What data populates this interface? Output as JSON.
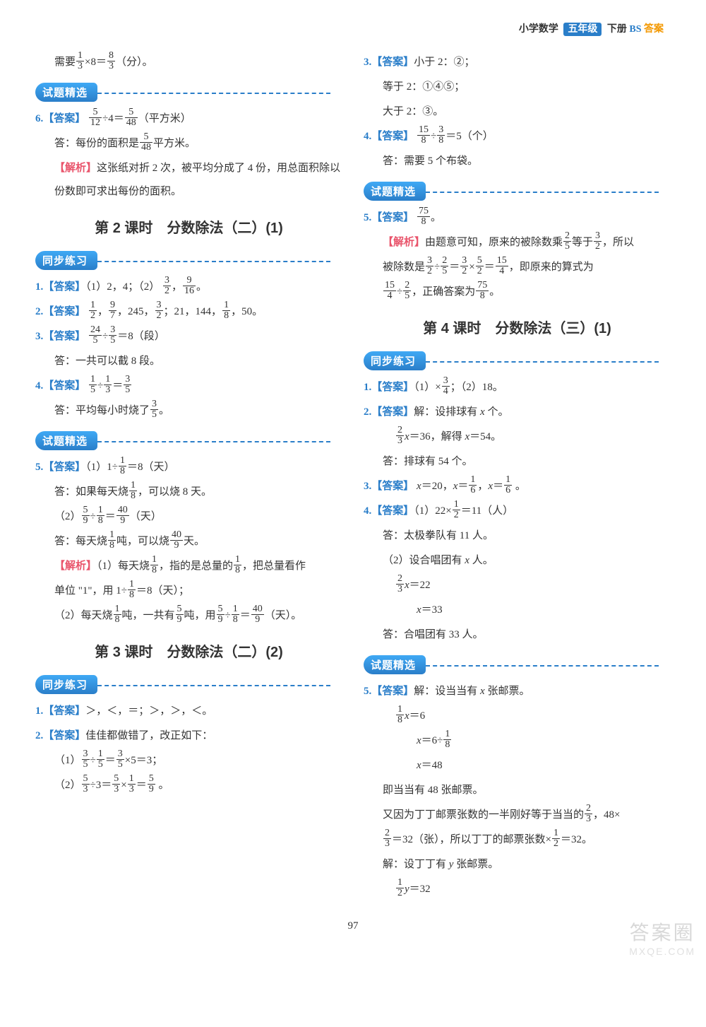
{
  "header": {
    "subject": "小学数学",
    "grade": "五年级",
    "vol": "下册",
    "book": "BS",
    "ans": "答案"
  },
  "labels": {
    "answer": "【答案】",
    "explain": "【解析】",
    "sel": "试题精选",
    "sync": "同步练习"
  },
  "sections": {
    "s2": "第 2 课时　分数除法（二）(1)",
    "s3": "第 3 课时　分数除法（二）(2)",
    "s4": "第 4 课时　分数除法（三）(1)"
  },
  "left": {
    "top1a": "需要",
    "top1b": "×8＝",
    "top1c": "（分）。",
    "q6a": "÷4＝",
    "q6b": "（平方米）",
    "q6ans": "答：每份的面积是",
    "q6ans2": "平方米。",
    "q6exp": "这张纸对折 2 次，被平均分成了 4 份，用总面积除以份数即可求出每份的面积。",
    "s2q1": "（1）2，4；（2）",
    "s2q2a": "，245，",
    "s2q2b": "；21，144，",
    "s2q2c": "，50。",
    "s2q3a": "÷",
    "s2q3b": "＝8（段）",
    "s2q3ans": "答：一共可以截 8 段。",
    "s2q4a": "÷",
    "s2q4b": "＝",
    "s2q4ans": "答：平均每小时烧了",
    "s2q5_1a": "（1）1÷",
    "s2q5_1b": "＝8（天）",
    "s2q5_1ans1": "答：如果每天烧",
    "s2q5_1ans2": "，可以烧 8 天。",
    "s2q5_2a": "（2）",
    "s2q5_2b": "÷",
    "s2q5_2c": "＝",
    "s2q5_2d": "（天）",
    "s2q5_2ans1": "答：每天烧",
    "s2q5_2ans2": "吨，可以烧",
    "s2q5_2ans3": "天。",
    "s2q5exp1a": "（1）每天烧",
    "s2q5exp1b": "，指的是总量的",
    "s2q5exp1c": "，把总量看作",
    "s2q5exp1d": "单位 \"1\"，用 1÷",
    "s2q5exp1e": "＝8（天）；",
    "s2q5exp2a": "（2）每天烧",
    "s2q5exp2b": "吨，一共有",
    "s2q5exp2c": "吨，用",
    "s2q5exp2d": "（天）。",
    "s3q1": "＞，＜，＝；＞，＞，＜。",
    "s3q2": "佳佳都做错了，改正如下：",
    "s3q2_1a": "（1）",
    "s3q2_1b": "×5＝3；",
    "s3q2_2a": "（2）",
    "s3q2_2b": "÷3＝"
  },
  "right": {
    "q3a": "小于 2：②；",
    "q3b": "等于 2：①④⑤；",
    "q3c": "大于 2：③。",
    "q4b": "＝5（个）",
    "q4ans": "答：需要 5 个布袋。",
    "q5exp1": "由题意可知，原来的被除数乘",
    "q5exp2": "等于",
    "q5exp3": "，所以",
    "q5exp4": "被除数是",
    "q5exp5": "，即原来的算式为",
    "q5exp6": "，正确答案为",
    "s4q1": "（1）×",
    "s4q1b": "；（2）18。",
    "s4q2a": "解：设排球有",
    "s4q2b": "个。",
    "s4q2c": "＝36，解得",
    "s4q2d": "＝54。",
    "s4q2ans": "答：排球有 54 个。",
    "s4q3": "＝20，",
    "s4q4a": "（1）22×",
    "s4q4b": "＝11（人）",
    "s4q4ans1": "答：太极拳队有 11 人。",
    "s4q4c": "（2）设合唱团有",
    "s4q4d": "人。",
    "s4q4e": "＝22",
    "s4q4f": "＝33",
    "s4q4ans2": "答：合唱团有 33 人。",
    "s4q5a": "解：设当当有",
    "s4q5b": "张邮票。",
    "s4q5c": "＝6",
    "s4q5d": "＝6÷",
    "s4q5e": "＝48",
    "s4q5f": "即当当有 48 张邮票。",
    "s4q5g1": "又因为丁丁邮票张数的一半刚好等于当当的",
    "s4q5g2": "，48×",
    "s4q5h1": "＝32（张），所以丁丁的邮票张数×",
    "s4q5h2": "＝32。",
    "s4q5i": "解：设丁丁有",
    "s4q5j": "张邮票。",
    "s4q5k": "＝32"
  },
  "page": "97",
  "watermark": {
    "t1": "答案圈",
    "t2": "MXQE.COM"
  }
}
